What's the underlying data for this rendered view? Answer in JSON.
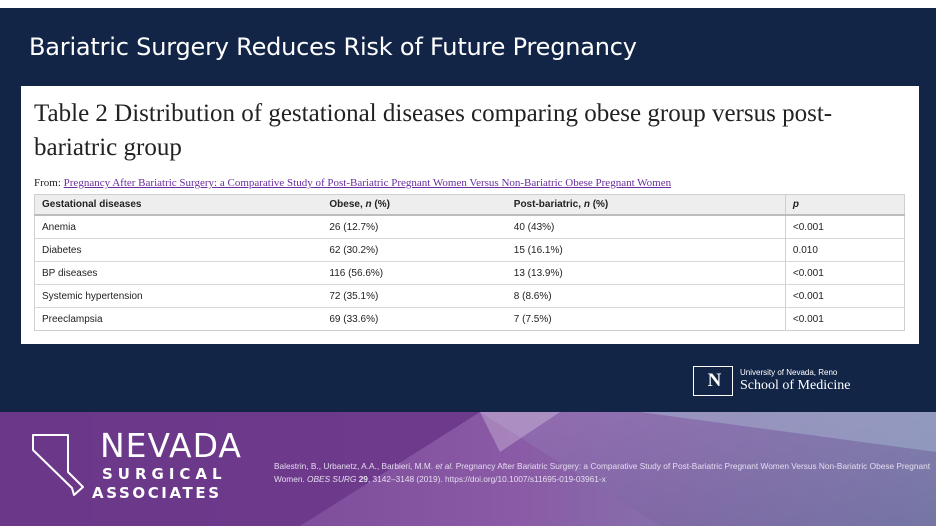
{
  "slide": {
    "title": "Bariatric Surgery Reduces Risk of Future Pregnancy",
    "colors": {
      "navy": "#122547",
      "purple": "#7b4a96",
      "white": "#ffffff"
    }
  },
  "table": {
    "heading": "Table 2 Distribution of gestational diseases comparing obese group versus post-bariatric group",
    "from_label": "From:",
    "from_link": "Pregnancy After Bariatric Surgery: a Comparative Study of Post-Bariatric Pregnant Women Versus Non-Bariatric Obese Pregnant Women",
    "columns": [
      {
        "text": "Gestational diseases",
        "italic": ""
      },
      {
        "text": "Obese, ",
        "italic": "n",
        "suffix": " (%)"
      },
      {
        "text": "Post-bariatric, ",
        "italic": "n",
        "suffix": " (%)"
      },
      {
        "text": "",
        "italic": "p"
      }
    ],
    "rows": [
      [
        "Anemia",
        "26 (12.7%)",
        "40 (43%)",
        "<0.001"
      ],
      [
        "Diabetes",
        "62 (30.2%)",
        "15 (16.1%)",
        "0.010"
      ],
      [
        "BP diseases",
        "116 (56.6%)",
        "13 (13.9%)",
        "<0.001"
      ],
      [
        "Systemic hypertension",
        "72 (35.1%)",
        "8 (8.6%)",
        "<0.001"
      ],
      [
        "Preeclampsia",
        "69 (33.6%)",
        "7 (7.5%)",
        "<0.001"
      ]
    ]
  },
  "unr_logo": {
    "mark": "N",
    "university": "University of Nevada, Reno",
    "school": "School of Medicine"
  },
  "nsa_logo": {
    "line1": "NEVADA",
    "line2": "SURGICAL",
    "line3": "ASSOCIATES"
  },
  "citation": {
    "authors": "Balestrin, B., Urbanetz, A.A., Barbieri, M.M. ",
    "etal": "et al.",
    "title": " Pregnancy After Bariatric Surgery: a Comparative Study of Post-Bariatric Pregnant Women Versus Non-Bariatric Obese Pregnant Women. ",
    "journal": "OBES SURG",
    "volume": " 29",
    "rest": ", 3142–3148 (2019). https://doi.org/10.1007/s11695-019-03961-x"
  }
}
